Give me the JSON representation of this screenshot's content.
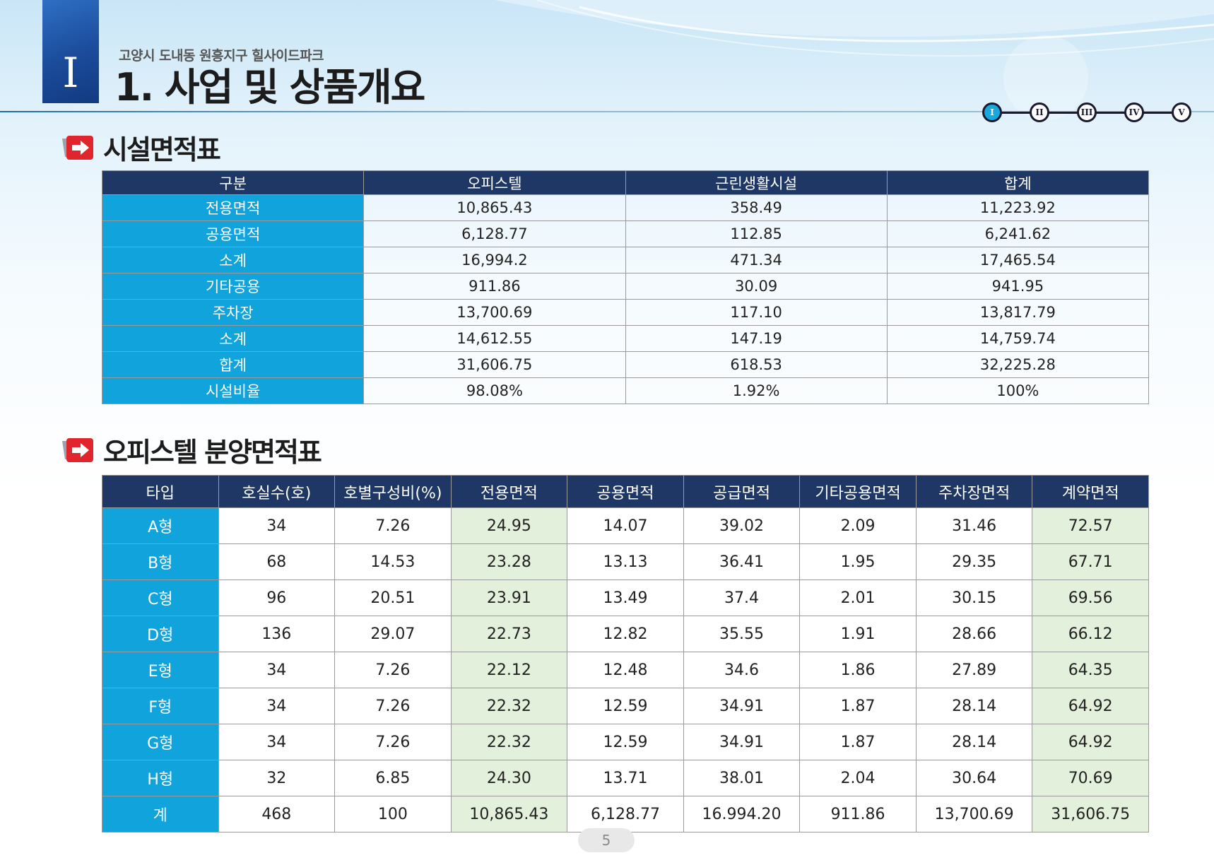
{
  "header": {
    "chapter_numeral": "I",
    "subtitle": "고양시 도내동 원흥지구 힐사이드파크",
    "title": "1. 사업 및 상품개요"
  },
  "nav": {
    "items": [
      "I",
      "II",
      "III",
      "IV",
      "V"
    ],
    "active_index": 0
  },
  "section1": {
    "title": "시설면적표",
    "columns": [
      "구분",
      "오피스텔",
      "근린생활시설",
      "합계"
    ],
    "rows": [
      [
        "전용면적",
        "10,865.43",
        "358.49",
        "11,223.92"
      ],
      [
        "공용면적",
        "6,128.77",
        "112.85",
        "6,241.62"
      ],
      [
        "소계",
        "16,994.2",
        "471.34",
        "17,465.54"
      ],
      [
        "기타공용",
        "911.86",
        "30.09",
        "941.95"
      ],
      [
        "주차장",
        "13,700.69",
        "117.10",
        "13,817.79"
      ],
      [
        "소계",
        "14,612.55",
        "147.19",
        "14,759.74"
      ],
      [
        "합계",
        "31,606.75",
        "618.53",
        "32,225.28"
      ],
      [
        "시설비율",
        "98.08%",
        "1.92%",
        "100%"
      ]
    ]
  },
  "section2": {
    "title": "오피스텔 분양면적표",
    "columns": [
      "타입",
      "호실수(호)",
      "호별구성비(%)",
      "전용면적",
      "공용면적",
      "공급면적",
      "기타공용면적",
      "주차장면적",
      "계약면적"
    ],
    "rows": [
      [
        "A형",
        "34",
        "7.26",
        "24.95",
        "14.07",
        "39.02",
        "2.09",
        "31.46",
        "72.57"
      ],
      [
        "B형",
        "68",
        "14.53",
        "23.28",
        "13.13",
        "36.41",
        "1.95",
        "29.35",
        "67.71"
      ],
      [
        "C형",
        "96",
        "20.51",
        "23.91",
        "13.49",
        "37.4",
        "2.01",
        "30.15",
        "69.56"
      ],
      [
        "D형",
        "136",
        "29.07",
        "22.73",
        "12.82",
        "35.55",
        "1.91",
        "28.66",
        "66.12"
      ],
      [
        "E형",
        "34",
        "7.26",
        "22.12",
        "12.48",
        "34.6",
        "1.86",
        "27.89",
        "64.35"
      ],
      [
        "F형",
        "34",
        "7.26",
        "22.32",
        "12.59",
        "34.91",
        "1.87",
        "28.14",
        "64.92"
      ],
      [
        "G형",
        "34",
        "7.26",
        "22.32",
        "12.59",
        "34.91",
        "1.87",
        "28.14",
        "64.92"
      ],
      [
        "H형",
        "32",
        "6.85",
        "24.30",
        "13.71",
        "38.01",
        "2.04",
        "30.64",
        "70.69"
      ],
      [
        "계",
        "468",
        "100",
        "10,865.43",
        "6,128.77",
        "16.994.20",
        "911.86",
        "13,700.69",
        "31,606.75"
      ]
    ]
  },
  "footer": {
    "page_number": "5"
  },
  "colors": {
    "header_row": "#1f3764",
    "row_head": "#11a3dc",
    "highlight_col": "#e3f0db",
    "accent_red": "#e0262c",
    "active_nav": "#19a7e0"
  }
}
